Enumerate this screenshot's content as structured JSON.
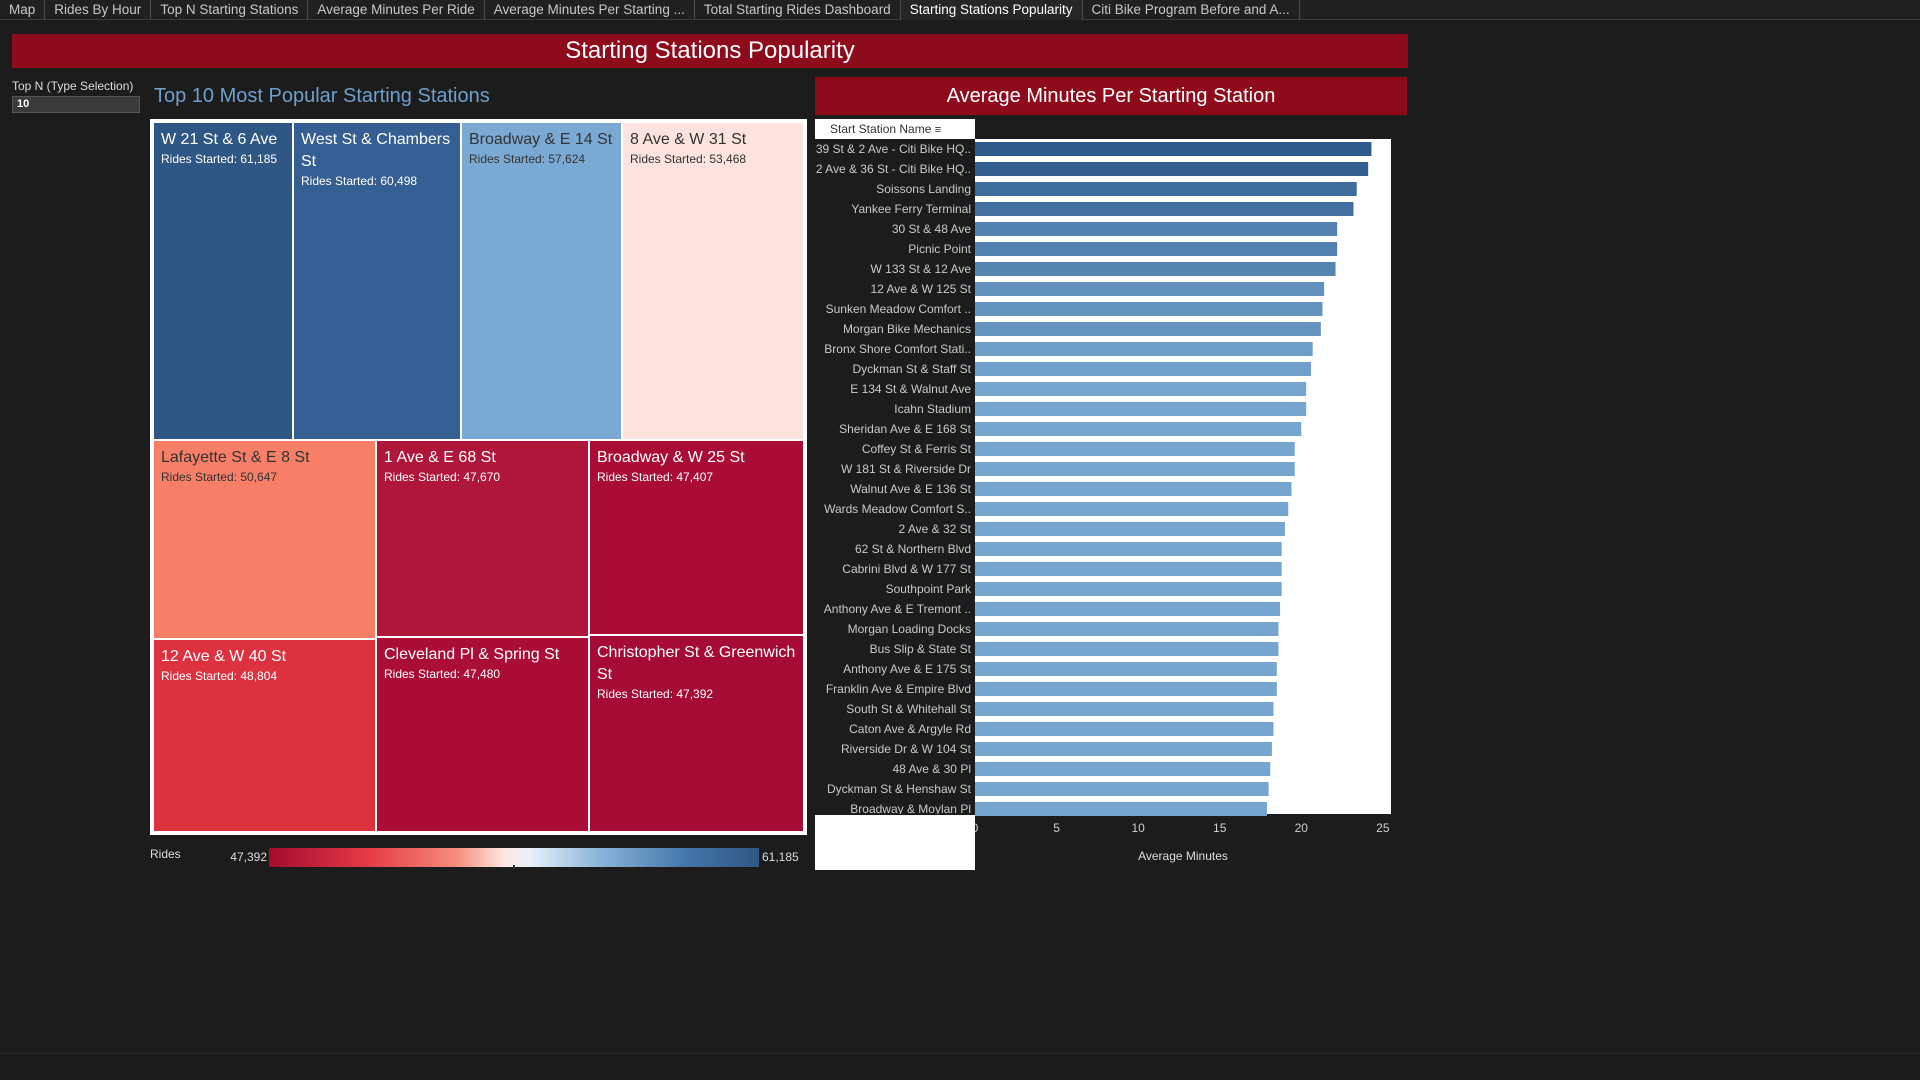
{
  "tabs": [
    {
      "label": "Map",
      "active": false
    },
    {
      "label": "Rides By Hour",
      "active": false
    },
    {
      "label": "Top N Starting Stations",
      "active": false
    },
    {
      "label": "Average Minutes Per Ride",
      "active": false
    },
    {
      "label": "Average Minutes Per Starting ...",
      "active": false
    },
    {
      "label": "Total Starting Rides Dashboard",
      "active": false
    },
    {
      "label": "Starting Stations Popularity",
      "active": true
    },
    {
      "label": "Citi Bike Program Before and A...",
      "active": false
    }
  ],
  "dashboard_title": "Starting Stations Popularity",
  "parameter": {
    "label": "Top N (Type Selection)",
    "value": "10"
  },
  "treemap": {
    "title": "Top 10 Most Popular Starting Stations",
    "value_prefix": "Rides Started: ",
    "cells": [
      {
        "name": "W 21 St & 6 Ave",
        "value": "61,185",
        "color": "#2f5785",
        "text": "dark"
      },
      {
        "name": "West St & Chambers St",
        "value": "60,498",
        "color": "#355f93",
        "text": "dark"
      },
      {
        "name": "Broadway & E 14 St",
        "value": "57,624",
        "color": "#7aaad4",
        "text": "light"
      },
      {
        "name": "8 Ave & W 31 St",
        "value": "53,468",
        "color": "#fde3de",
        "text": "light"
      },
      {
        "name": "Lafayette St & E 8 St",
        "value": "50,647",
        "color": "#f77f68",
        "text": "light"
      },
      {
        "name": "1 Ave & E 68 St",
        "value": "47,670",
        "color": "#b0163a",
        "text": "dark"
      },
      {
        "name": "Broadway & W 25 St",
        "value": "47,407",
        "color": "#a90d36",
        "text": "dark"
      },
      {
        "name": "12 Ave & W 40 St",
        "value": "48,804",
        "color": "#dc3240",
        "text": "dark"
      },
      {
        "name": "Cleveland Pl & Spring St",
        "value": "47,480",
        "color": "#aa0e37",
        "text": "dark"
      },
      {
        "name": "Christopher St & Greenwich St",
        "value": "47,392",
        "color": "#a50b35",
        "text": "dark"
      }
    ]
  },
  "legend": {
    "label": "Rides",
    "min": "47,392",
    "max": "61,185"
  },
  "bar_chart_title": "Average Minutes Per Starting Station",
  "chart_data": {
    "type": "bar",
    "orientation": "horizontal",
    "column_header": "Start Station Name",
    "xlabel": "Average Minutes",
    "xlim": [
      0,
      25.5
    ],
    "x_ticks": [
      "0",
      "5",
      "10",
      "15",
      "20",
      "25"
    ],
    "categories": [
      "39 St & 2 Ave - Citi Bike HQ..",
      "2 Ave & 36 St - Citi Bike HQ..",
      "Soissons Landing",
      "Yankee Ferry Terminal",
      "30 St & 48 Ave",
      "Picnic Point",
      "W 133 St & 12 Ave",
      "12 Ave & W 125 St",
      "Sunken Meadow Comfort ..",
      "Morgan Bike Mechanics",
      "Bronx Shore Comfort Stati..",
      "Dyckman St & Staff St",
      "E 134 St & Walnut Ave",
      "Icahn Stadium",
      "Sheridan Ave & E 168 St",
      "Coffey St & Ferris St",
      "W 181 St & Riverside Dr",
      "Walnut Ave & E 136 St",
      "Wards Meadow Comfort S..",
      "2 Ave & 32 St",
      "62 St & Northern Blvd",
      "Cabrini Blvd & W 177 St",
      "Southpoint Park",
      "Anthony Ave & E Tremont ..",
      "Morgan Loading Docks",
      "Bus Slip & State St",
      "Anthony Ave & E 175 St",
      "Franklin Ave & Empire Blvd",
      "South St & Whitehall St",
      "Caton Ave & Argyle Rd",
      "Riverside Dr & W 104 St",
      "48 Ave & 30 Pl",
      "Dyckman St & Henshaw St",
      "Broadway & Moylan Pl"
    ],
    "values": [
      24.3,
      24.1,
      23.4,
      23.2,
      22.2,
      22.2,
      22.1,
      21.4,
      21.3,
      21.2,
      20.7,
      20.6,
      20.3,
      20.3,
      20.0,
      19.6,
      19.6,
      19.4,
      19.2,
      19.0,
      18.8,
      18.8,
      18.8,
      18.7,
      18.6,
      18.6,
      18.5,
      18.5,
      18.3,
      18.3,
      18.2,
      18.1,
      18.0,
      17.9
    ],
    "bar_color_dark": "#2e5b8c",
    "bar_color_light": "#76a5d0"
  }
}
